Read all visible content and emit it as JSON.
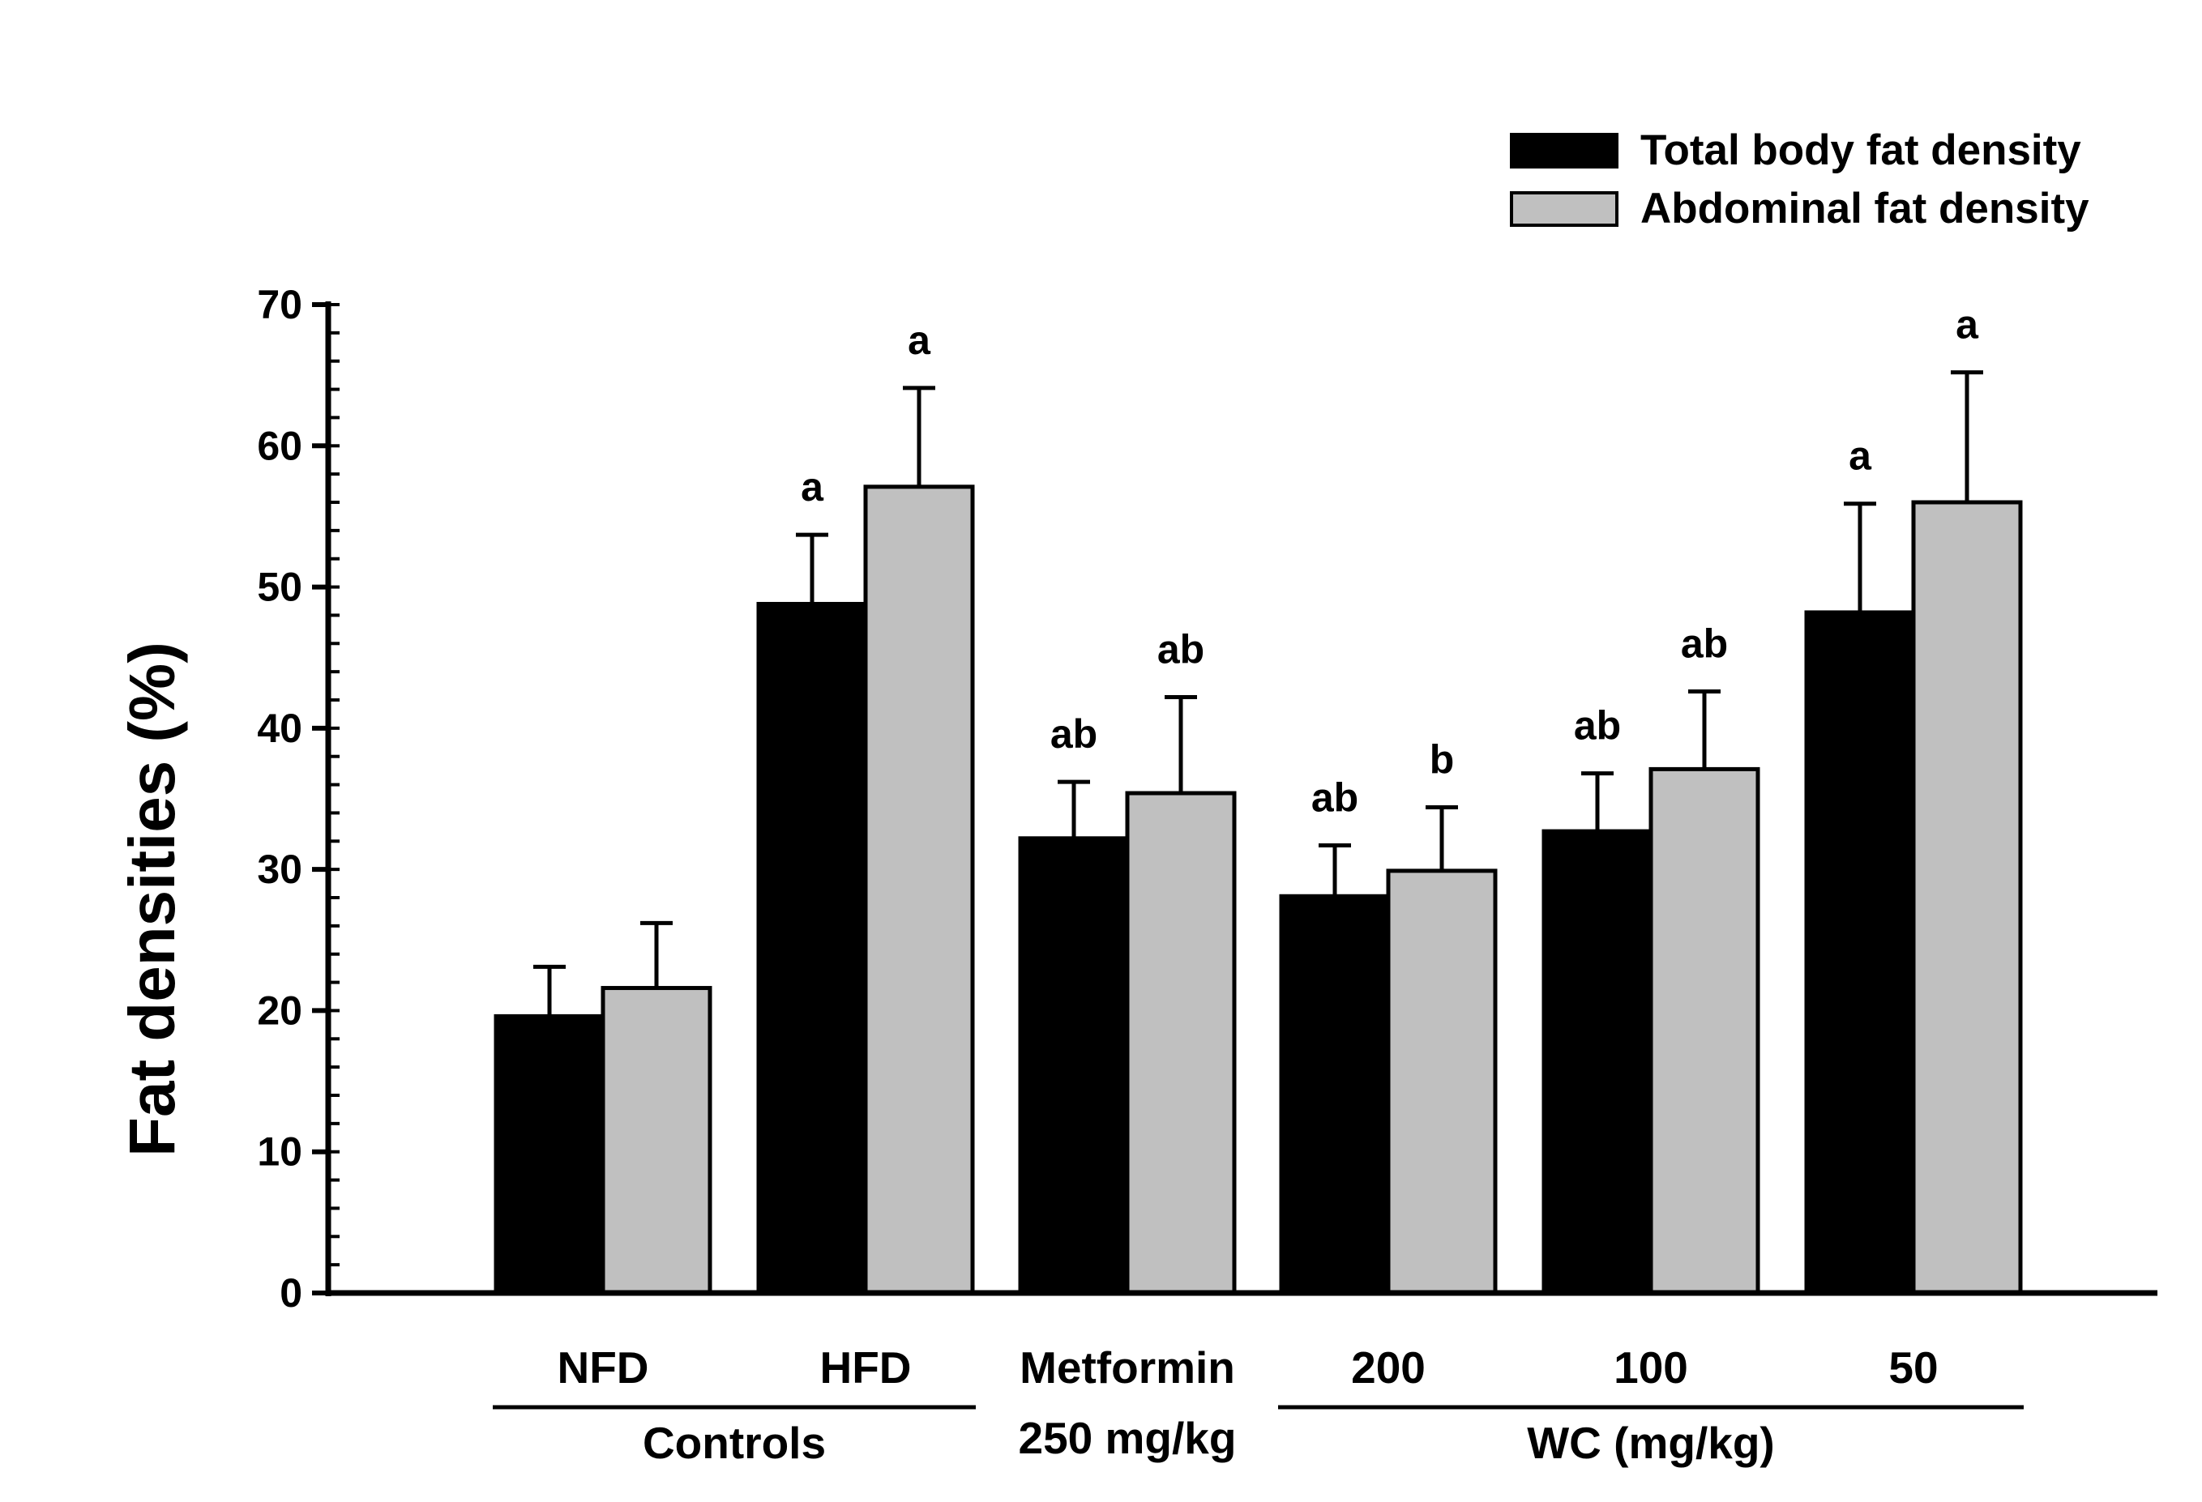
{
  "chart_data": {
    "type": "bar",
    "ylabel": "Fat densities (%)",
    "xlabel": "",
    "ylim": [
      0,
      70
    ],
    "yticks": [
      0,
      10,
      20,
      30,
      40,
      50,
      60,
      70
    ],
    "categories": [
      "NFD",
      "HFD",
      "Metformin\n250 mg/kg",
      "200",
      "100",
      "50"
    ],
    "category_lines": [
      [
        "NFD"
      ],
      [
        "HFD"
      ],
      [
        "Metformin",
        "250 mg/kg"
      ],
      [
        "200"
      ],
      [
        "100"
      ],
      [
        "50"
      ]
    ],
    "groups": [
      {
        "label": "Controls",
        "categories": [
          "NFD",
          "HFD"
        ]
      },
      {
        "label": "WC (mg/kg)",
        "categories": [
          "200",
          "100",
          "50"
        ]
      }
    ],
    "series": [
      {
        "name": "Total body fat density",
        "color": "#000000",
        "values": [
          19.6,
          48.8,
          32.2,
          28.1,
          32.7,
          48.2
        ],
        "errors": [
          3.5,
          4.9,
          4.0,
          3.6,
          4.1,
          7.7
        ],
        "significance": [
          "",
          "a",
          "ab",
          "ab",
          "ab",
          "a"
        ]
      },
      {
        "name": "Abdominal fat density",
        "color": "#c0c0c0",
        "values": [
          21.6,
          57.1,
          35.4,
          29.9,
          37.1,
          56.0
        ],
        "errors": [
          4.6,
          7.0,
          6.8,
          4.5,
          5.5,
          9.2
        ],
        "significance": [
          "",
          "a",
          "ab",
          "b",
          "ab",
          "a"
        ]
      }
    ],
    "legend_position": "top-right"
  }
}
